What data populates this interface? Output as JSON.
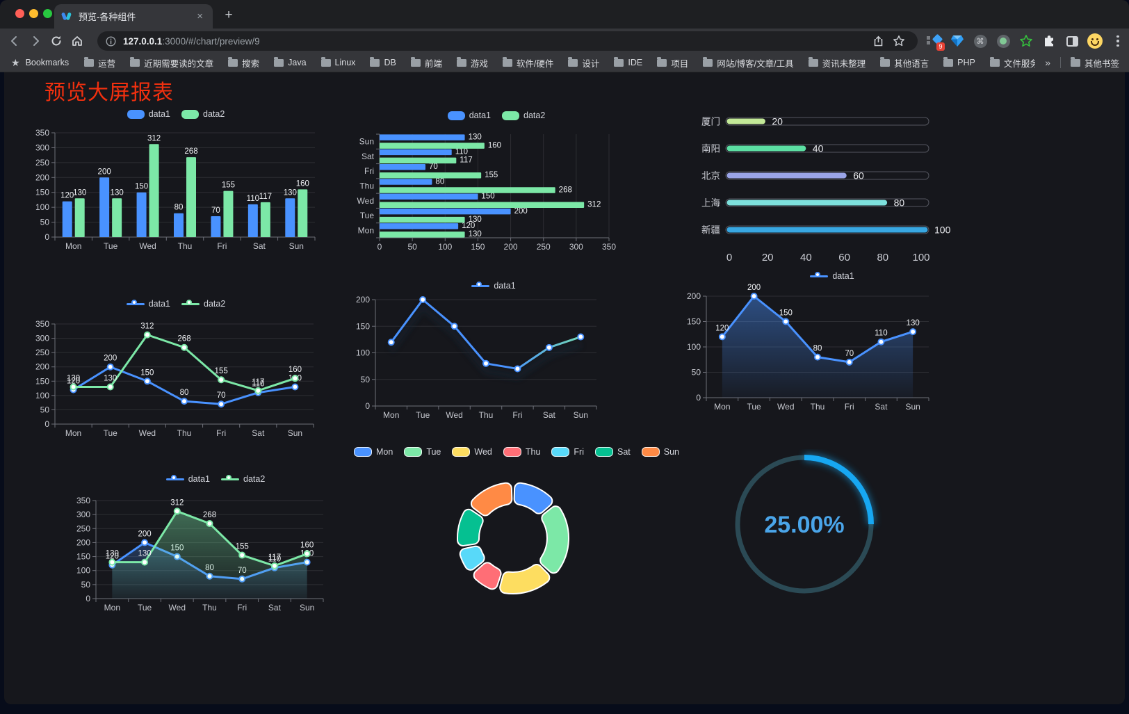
{
  "browser": {
    "tab_title": "预览-各种组件",
    "close_glyph": "×",
    "new_tab_glyph": "+",
    "url_host": "127.0.0.1",
    "url_rest": ":3000/#/chart/preview/9",
    "extension_badge": "9",
    "bookmarks_label": "Bookmarks",
    "bookmarks": [
      "运营",
      "近期需要读的文章",
      "搜索",
      "Java",
      "Linux",
      "DB",
      "前端",
      "游戏",
      "软件/硬件",
      "设计",
      "IDE",
      "项目",
      "网站/博客/文章/工具",
      "资讯未整理",
      "其他语言",
      "PHP",
      "文件服务器"
    ],
    "bookmarks_overflow": "»",
    "other_bookmarks": "其他书签"
  },
  "page": {
    "title": "预览大屏报表"
  },
  "chart_data": [
    {
      "id": "grouped-bar",
      "type": "bar",
      "legend": true,
      "categories": [
        "Mon",
        "Tue",
        "Wed",
        "Thu",
        "Fri",
        "Sat",
        "Sun"
      ],
      "ylim": [
        0,
        350
      ],
      "ytick_step": 50,
      "show_labels": true,
      "grid": true,
      "series": [
        {
          "name": "data1",
          "color": "#4992ff",
          "values": [
            120,
            200,
            150,
            80,
            70,
            110,
            130
          ]
        },
        {
          "name": "data2",
          "color": "#7ce8a7",
          "values": [
            130,
            130,
            312,
            268,
            155,
            117,
            160
          ]
        }
      ]
    },
    {
      "id": "grouped-hbar",
      "type": "hbar",
      "legend": true,
      "categories": [
        "Mon",
        "Tue",
        "Wed",
        "Thu",
        "Fri",
        "Sat",
        "Sun"
      ],
      "xlim": [
        0,
        350
      ],
      "xtick_step": 50,
      "show_labels": true,
      "grid": true,
      "series": [
        {
          "name": "data1",
          "color": "#4992ff",
          "values": [
            120,
            200,
            150,
            80,
            70,
            110,
            130
          ]
        },
        {
          "name": "data2",
          "color": "#7ce8a7",
          "values": [
            130,
            130,
            312,
            268,
            155,
            117,
            160
          ]
        }
      ]
    },
    {
      "id": "capsule-progress",
      "type": "progress",
      "max": 100,
      "xticks": [
        0,
        20,
        40,
        60,
        80,
        100
      ],
      "items": [
        {
          "label": "厦门",
          "value": 20,
          "color": "#c3e998"
        },
        {
          "label": "南阳",
          "value": 40,
          "color": "#5cdfa3"
        },
        {
          "label": "北京",
          "value": 60,
          "color": "#9aa4e8"
        },
        {
          "label": "上海",
          "value": 80,
          "color": "#7de0dc"
        },
        {
          "label": "新疆",
          "value": 100,
          "color": "#38a7e2"
        }
      ]
    },
    {
      "id": "line-two-series",
      "type": "line",
      "legend": true,
      "categories": [
        "Mon",
        "Tue",
        "Wed",
        "Thu",
        "Fri",
        "Sat",
        "Sun"
      ],
      "ylim": [
        0,
        350
      ],
      "ytick_step": 50,
      "show_labels": true,
      "series": [
        {
          "name": "data1",
          "color": "#4992ff",
          "values": [
            120,
            200,
            150,
            80,
            70,
            110,
            130
          ]
        },
        {
          "name": "data2",
          "color": "#7ce8a7",
          "values": [
            130,
            130,
            312,
            268,
            155,
            117,
            160
          ]
        }
      ]
    },
    {
      "id": "gradient-line",
      "type": "line",
      "legend": true,
      "categories": [
        "Mon",
        "Tue",
        "Wed",
        "Thu",
        "Fri",
        "Sat",
        "Sun"
      ],
      "ylim": [
        0,
        200
      ],
      "ytick_step": 50,
      "show_labels": false,
      "shadow": true,
      "series": [
        {
          "name": "data1",
          "color": "#4992ff",
          "gradient": [
            "#4992ff",
            "#4992ff",
            "#7ce8a7"
          ],
          "values": [
            120,
            200,
            150,
            80,
            70,
            110,
            130
          ]
        }
      ]
    },
    {
      "id": "area-line",
      "type": "line",
      "legend": true,
      "categories": [
        "Mon",
        "Tue",
        "Wed",
        "Thu",
        "Fri",
        "Sat",
        "Sun"
      ],
      "ylim": [
        0,
        200
      ],
      "ytick_step": 50,
      "show_labels": true,
      "series": [
        {
          "name": "data1",
          "color": "#4992ff",
          "area": true,
          "values": [
            120,
            200,
            150,
            80,
            70,
            110,
            130
          ]
        }
      ]
    },
    {
      "id": "two-series-area",
      "type": "line",
      "legend": true,
      "categories": [
        "Mon",
        "Tue",
        "Wed",
        "Thu",
        "Fri",
        "Sat",
        "Sun"
      ],
      "ylim": [
        0,
        350
      ],
      "ytick_step": 50,
      "show_labels": true,
      "series": [
        {
          "name": "data1",
          "color": "#4992ff",
          "area": true,
          "values": [
            120,
            200,
            150,
            80,
            70,
            110,
            130
          ]
        },
        {
          "name": "data2",
          "color": "#7ce8a7",
          "area": true,
          "values": [
            130,
            130,
            312,
            268,
            155,
            117,
            160
          ]
        }
      ]
    },
    {
      "id": "donut",
      "type": "donut",
      "legend": true,
      "items": [
        {
          "label": "Mon",
          "value": 120,
          "color": "#4992ff"
        },
        {
          "label": "Tue",
          "value": 200,
          "color": "#7ce8a7"
        },
        {
          "label": "Wed",
          "value": 150,
          "color": "#fddd60"
        },
        {
          "label": "Thu",
          "value": 80,
          "color": "#ff6e76"
        },
        {
          "label": "Fri",
          "value": 70,
          "color": "#58d9f9"
        },
        {
          "label": "Sat",
          "value": 110,
          "color": "#05c091"
        },
        {
          "label": "Sun",
          "value": 130,
          "color": "#ff8a45"
        }
      ]
    },
    {
      "id": "gauge",
      "type": "gauge",
      "value": 25,
      "max": 100,
      "display": "25.00%",
      "color": "#17a7f2",
      "track_color": "#2b4a55",
      "text_color": "#4aa5e9"
    }
  ]
}
